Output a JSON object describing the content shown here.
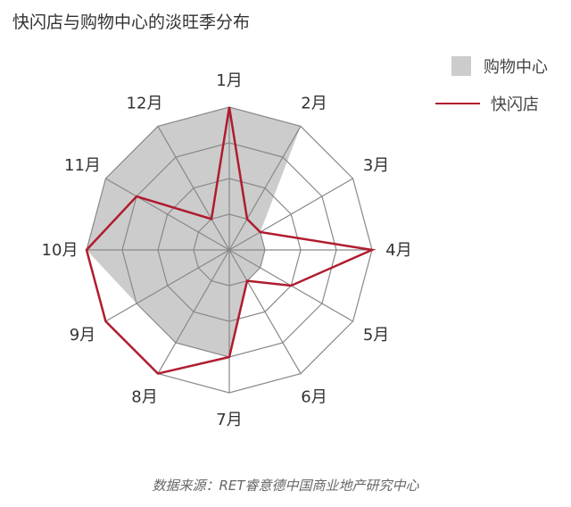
{
  "title": "快闪店与购物中心的淡旺季分布",
  "source": "数据来源：RET睿意德中国商业地产研究中心",
  "legend": {
    "mall": "购物中心",
    "popup": "快闪店"
  },
  "colors": {
    "mall_fill": "#cccccc",
    "popup_line": "#b01c2e",
    "grid": "#888888"
  },
  "chart_data": {
    "type": "radar",
    "title": "快闪店与购物中心的淡旺季分布",
    "categories": [
      "1月",
      "2月",
      "3月",
      "4月",
      "5月",
      "6月",
      "7月",
      "8月",
      "9月",
      "10月",
      "11月",
      "12月"
    ],
    "rings": 4,
    "max": 4,
    "legend_position": "top-right",
    "series": [
      {
        "name": "购物中心",
        "kind": "area",
        "values": [
          4,
          4,
          1,
          1,
          1,
          1,
          3,
          3,
          3,
          4,
          4,
          4
        ]
      },
      {
        "name": "快闪店",
        "kind": "line",
        "values": [
          4,
          1,
          1,
          4,
          2,
          1,
          3,
          4,
          4,
          4,
          3,
          1
        ]
      }
    ]
  }
}
